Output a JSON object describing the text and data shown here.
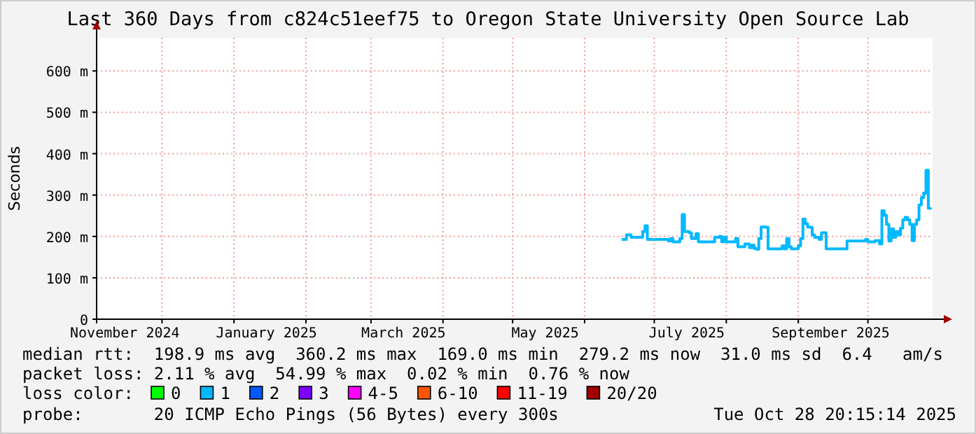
{
  "chart_data": {
    "type": "step",
    "title": "Last 360 Days from c824c51eef75 to Oregon State University Open Source Lab",
    "ylabel": "Seconds",
    "legend_title": "loss color:",
    "legend": "bottom",
    "grid": true,
    "marker": "none",
    "line_style": "solid",
    "xlim": [
      "2024-11-02T20:15",
      "2025-10-28T20:15"
    ],
    "xticks": [
      {
        "value": "2024-11-15",
        "label": "November 2024"
      },
      {
        "value": "2025-01-15",
        "label": "January 2025"
      },
      {
        "value": "2025-03-15",
        "label": "March 2025"
      },
      {
        "value": "2025-05-15",
        "label": "May 2025"
      },
      {
        "value": "2025-07-15",
        "label": "July 2025"
      },
      {
        "value": "2025-09-15",
        "label": "September 2025"
      },
      {
        "value": "2024-12-01",
        "label": null
      },
      {
        "value": "2025-01-01",
        "label": null
      },
      {
        "value": "2025-02-01",
        "label": null
      },
      {
        "value": "2025-03-01",
        "label": null
      },
      {
        "value": "2025-04-01",
        "label": null
      },
      {
        "value": "2025-05-01",
        "label": null
      },
      {
        "value": "2025-06-01",
        "label": null
      },
      {
        "value": "2025-07-01",
        "label": null
      },
      {
        "value": "2025-08-01",
        "label": null
      },
      {
        "value": "2025-09-01",
        "label": null
      },
      {
        "value": "2025-10-01",
        "label": null
      }
    ],
    "ylim": [
      0,
      680
    ],
    "yticks": [
      {
        "value": 0,
        "label": "0"
      },
      {
        "value": 100,
        "label": "100 m"
      },
      {
        "value": 200,
        "label": "200 m"
      },
      {
        "value": 300,
        "label": "300 m"
      },
      {
        "value": 400,
        "label": "400 m"
      },
      {
        "value": 500,
        "label": "500 m"
      },
      {
        "value": 600,
        "label": "600 m"
      }
    ],
    "x": [
      "2025-06-17",
      "2025-06-19",
      "2025-06-21",
      "2025-06-26",
      "2025-06-27",
      "2025-06-28",
      "2025-07-07",
      "2025-07-08",
      "2025-07-09",
      "2025-07-11",
      "2025-07-12",
      "2025-07-13",
      "2025-07-14",
      "2025-07-16",
      "2025-07-17",
      "2025-07-19",
      "2025-07-20",
      "2025-07-26",
      "2025-07-27",
      "2025-07-29",
      "2025-07-30",
      "2025-07-31",
      "2025-08-01",
      "2025-08-04",
      "2025-08-05",
      "2025-08-06",
      "2025-08-09",
      "2025-08-11",
      "2025-08-12",
      "2025-08-13",
      "2025-08-14",
      "2025-08-15",
      "2025-08-16",
      "2025-08-18",
      "2025-08-19",
      "2025-08-24",
      "2025-08-25",
      "2025-08-26",
      "2025-08-27",
      "2025-08-28",
      "2025-08-29",
      "2025-08-31",
      "2025-09-01",
      "2025-09-02",
      "2025-09-03",
      "2025-09-04",
      "2025-09-05",
      "2025-09-06",
      "2025-09-07",
      "2025-09-08",
      "2025-09-10",
      "2025-09-11",
      "2025-09-12",
      "2025-09-13",
      "2025-09-21",
      "2025-09-22",
      "2025-09-29",
      "2025-09-30",
      "2025-10-01",
      "2025-10-04",
      "2025-10-06",
      "2025-10-07",
      "2025-10-08",
      "2025-10-09",
      "2025-10-10",
      "2025-10-11",
      "2025-10-12",
      "2025-10-13",
      "2025-10-14",
      "2025-10-15",
      "2025-10-16",
      "2025-10-17",
      "2025-10-18",
      "2025-10-19",
      "2025-10-20",
      "2025-10-21",
      "2025-10-22",
      "2025-10-23",
      "2025-10-24",
      "2025-10-25",
      "2025-10-26",
      "2025-10-27",
      "2025-10-28"
    ],
    "series": [
      {
        "name": "0",
        "color": "#00ff00",
        "values": [
          null,
          null,
          null,
          null,
          null,
          null,
          null,
          null,
          null,
          null,
          null,
          null,
          null,
          null,
          null,
          null,
          null,
          null,
          null,
          null,
          null,
          null,
          null,
          null,
          null,
          null,
          null,
          null,
          null,
          null,
          null,
          null,
          null,
          null,
          null,
          null,
          null,
          null,
          null,
          null,
          null,
          null,
          null,
          null,
          null,
          null,
          null,
          null,
          null,
          null,
          null,
          null,
          null,
          null,
          null,
          null,
          null,
          null,
          null,
          null,
          null,
          null,
          null,
          null,
          null,
          null,
          null,
          null,
          null,
          null,
          null,
          null,
          null,
          null,
          null,
          null,
          null,
          null,
          null,
          null,
          null,
          null,
          null
        ]
      },
      {
        "name": "1",
        "color": "#00b8ff",
        "values": [
          193,
          204,
          198,
          212,
          226,
          193,
          189,
          195,
          187,
          187,
          195,
          253,
          212,
          209,
          195,
          207,
          187,
          187,
          198,
          200,
          187,
          198,
          187,
          187,
          195,
          175,
          182,
          173,
          179,
          171,
          169,
          195,
          223,
          222,
          170,
          170,
          177,
          170,
          195,
          175,
          170,
          170,
          177,
          195,
          242,
          231,
          223,
          222,
          204,
          198,
          193,
          209,
          209,
          170,
          170,
          189,
          189,
          193,
          187,
          190,
          182,
          262,
          251,
          229,
          189,
          218,
          198,
          212,
          204,
          220,
          240,
          246,
          240,
          229,
          190,
          229,
          240,
          276,
          294,
          305,
          360,
          268,
          270
        ]
      },
      {
        "name": "2",
        "color": "#0059ff",
        "values": [
          null,
          null,
          null,
          null,
          null,
          null,
          null,
          null,
          null,
          null,
          null,
          null,
          null,
          null,
          null,
          null,
          null,
          null,
          null,
          null,
          null,
          null,
          null,
          null,
          null,
          null,
          null,
          null,
          null,
          null,
          null,
          null,
          null,
          null,
          null,
          null,
          null,
          null,
          null,
          null,
          null,
          null,
          null,
          null,
          null,
          null,
          null,
          null,
          null,
          null,
          null,
          null,
          null,
          null,
          null,
          null,
          null,
          null,
          null,
          null,
          null,
          null,
          null,
          null,
          null,
          null,
          null,
          null,
          null,
          null,
          null,
          null,
          null,
          null,
          null,
          null,
          null,
          null,
          null,
          null,
          null,
          null,
          null
        ]
      },
      {
        "name": "3",
        "color": "#7e00ff",
        "values": [
          null,
          null,
          null,
          null,
          null,
          null,
          null,
          null,
          null,
          null,
          null,
          null,
          null,
          null,
          null,
          null,
          null,
          null,
          null,
          null,
          null,
          null,
          null,
          null,
          null,
          null,
          null,
          null,
          null,
          null,
          null,
          null,
          null,
          null,
          null,
          null,
          null,
          null,
          null,
          null,
          null,
          null,
          null,
          null,
          null,
          null,
          null,
          null,
          null,
          null,
          null,
          null,
          null,
          null,
          null,
          null,
          null,
          null,
          null,
          null,
          null,
          null,
          null,
          null,
          null,
          null,
          null,
          null,
          null,
          null,
          null,
          null,
          null,
          null,
          null,
          null,
          null,
          null,
          null,
          null,
          null,
          null,
          null
        ]
      },
      {
        "name": "4-5",
        "color": "#ff00ff",
        "values": [
          null,
          null,
          null,
          null,
          null,
          null,
          null,
          null,
          null,
          null,
          null,
          null,
          null,
          null,
          null,
          null,
          null,
          null,
          null,
          null,
          null,
          null,
          null,
          null,
          null,
          null,
          null,
          null,
          null,
          null,
          null,
          null,
          null,
          null,
          null,
          null,
          null,
          null,
          null,
          null,
          null,
          null,
          null,
          null,
          null,
          null,
          null,
          null,
          null,
          null,
          null,
          null,
          null,
          null,
          null,
          null,
          null,
          null,
          null,
          null,
          null,
          null,
          null,
          null,
          null,
          null,
          null,
          null,
          null,
          null,
          null,
          null,
          null,
          null,
          null,
          null,
          null,
          null,
          null,
          null,
          null,
          null,
          null
        ]
      },
      {
        "name": "6-10",
        "color": "#ff5500",
        "values": [
          null,
          null,
          null,
          null,
          null,
          null,
          null,
          null,
          null,
          null,
          null,
          null,
          null,
          null,
          null,
          null,
          null,
          null,
          null,
          null,
          null,
          null,
          null,
          null,
          null,
          null,
          null,
          null,
          null,
          null,
          null,
          null,
          null,
          null,
          null,
          null,
          null,
          null,
          null,
          null,
          null,
          null,
          null,
          null,
          null,
          null,
          null,
          null,
          null,
          null,
          null,
          null,
          null,
          null,
          null,
          null,
          null,
          null,
          null,
          null,
          null,
          null,
          null,
          null,
          null,
          null,
          null,
          null,
          null,
          null,
          null,
          null,
          null,
          null,
          null,
          null,
          null,
          null,
          null,
          null,
          null,
          null,
          null
        ]
      },
      {
        "name": "11-19",
        "color": "#ff0000",
        "values": [
          null,
          null,
          null,
          null,
          null,
          null,
          null,
          null,
          null,
          null,
          null,
          null,
          null,
          null,
          null,
          null,
          null,
          null,
          null,
          null,
          null,
          null,
          null,
          null,
          null,
          null,
          null,
          null,
          null,
          null,
          null,
          null,
          null,
          null,
          null,
          null,
          null,
          null,
          null,
          null,
          null,
          null,
          null,
          null,
          null,
          null,
          null,
          null,
          null,
          null,
          null,
          null,
          null,
          null,
          null,
          null,
          null,
          null,
          null,
          null,
          null,
          null,
          null,
          null,
          null,
          null,
          null,
          null,
          null,
          null,
          null,
          null,
          null,
          null,
          null,
          null,
          null,
          null,
          null,
          null,
          null,
          null,
          null
        ]
      },
      {
        "name": "20/20",
        "color": "#a10000",
        "values": [
          null,
          null,
          null,
          null,
          null,
          null,
          null,
          null,
          null,
          null,
          null,
          null,
          null,
          null,
          null,
          null,
          null,
          null,
          null,
          null,
          null,
          null,
          null,
          null,
          null,
          null,
          null,
          null,
          null,
          null,
          null,
          null,
          null,
          null,
          null,
          null,
          null,
          null,
          null,
          null,
          null,
          null,
          null,
          null,
          null,
          null,
          null,
          null,
          null,
          null,
          null,
          null,
          null,
          null,
          null,
          null,
          null,
          null,
          null,
          null,
          null,
          null,
          null,
          null,
          null,
          null,
          null,
          null,
          null,
          null,
          null,
          null,
          null,
          null,
          null,
          null,
          null,
          null,
          null,
          null,
          null,
          null,
          null
        ]
      }
    ],
    "annotations": [
      "median rtt:  198.9 ms avg  360.2 ms max  169.0 ms min  279.2 ms now  31.0 ms sd  6.4   am/s",
      "packet loss: 2.11 % avg  54.99 % max  0.02 % min  0.76 % now",
      "probe:       20 ICMP Echo Pings (56 Bytes) every 300s",
      "Tue Oct 28 20:15:14 2025"
    ]
  }
}
